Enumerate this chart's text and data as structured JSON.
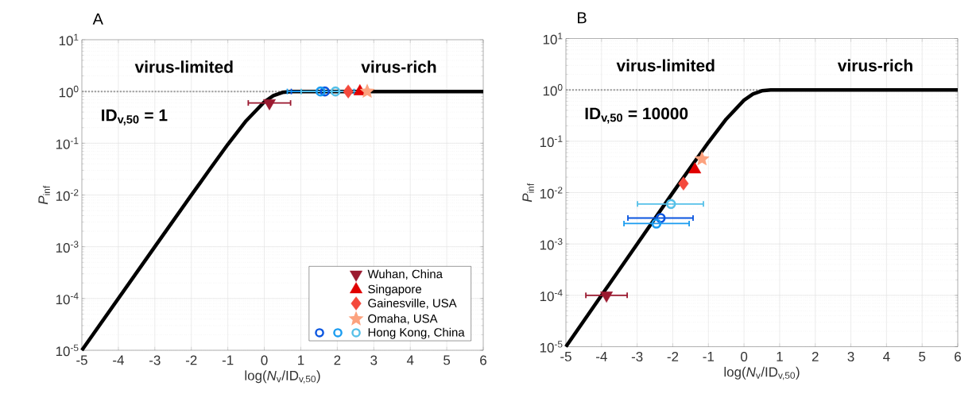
{
  "chart_data": [
    {
      "type": "scatter",
      "title": "A",
      "xlabel": "log(*N*$_{v}$/ID$_{v,50}$)",
      "ylabel": "*P*$_{inf}$",
      "annotations": [
        "virus-limited",
        "virus-rich",
        "ID$_{v,50}$ = 1"
      ],
      "xlim": [
        -5,
        6
      ],
      "ylim": [
        1e-05,
        10
      ],
      "xticks": [
        -5,
        -4,
        -3,
        -2,
        -1,
        0,
        1,
        2,
        3,
        4,
        5,
        6
      ],
      "yticks": [
        {
          "value": 1e-05,
          "label": "10$^{-5}$"
        },
        {
          "value": 0.0001,
          "label": "10$^{-4}$"
        },
        {
          "value": 0.001,
          "label": "10$^{-3}$"
        },
        {
          "value": 0.01,
          "label": "10$^{-2}$"
        },
        {
          "value": 0.1,
          "label": "10$^{-1}$"
        },
        {
          "value": 1,
          "label": "10$^{0}$"
        },
        {
          "value": 10,
          "label": "10$^{1}$"
        }
      ],
      "log": "y",
      "grid": true,
      "legend": "bottom right",
      "ref_lines": [
        {
          "axis": "y",
          "value": 1,
          "color": "#999999",
          "line_style": "dotted"
        }
      ],
      "series": [
        {
          "type": "line",
          "color": "#000000",
          "marker": "none",
          "x": [
            -5,
            -4,
            -3,
            -2,
            -1.5,
            -1,
            -0.5,
            0,
            0.25,
            0.5,
            0.75,
            1,
            1.5,
            2,
            6
          ],
          "values": [
            1e-05,
            0.0001,
            0.001,
            0.00995,
            0.031,
            0.095,
            0.27,
            0.63,
            0.83,
            0.96,
            0.996,
            1,
            1,
            1,
            1
          ]
        },
        {
          "type": "scatter",
          "name": "Wuhan, China",
          "color": "#9b1a30",
          "marker": "triangle-down",
          "x": [
            0.14
          ],
          "values": [
            0.6
          ],
          "xerrors": [
            [
              -0.44,
              0.72
            ]
          ]
        },
        {
          "type": "scatter",
          "name": "Singapore",
          "color": "#e00000",
          "marker": "triangle",
          "x": [
            2.62
          ],
          "values": [
            1
          ]
        },
        {
          "type": "scatter",
          "name": "Gainesville, USA",
          "color": "#f4493c",
          "marker": "diamond",
          "x": [
            2.3
          ],
          "values": [
            1
          ]
        },
        {
          "type": "scatter",
          "name": "Omaha, USA",
          "color": "#fca27e",
          "marker": "star",
          "x": [
            2.82
          ],
          "values": [
            1
          ]
        },
        {
          "type": "scatter",
          "color": "#0a55e0",
          "marker": "circle",
          "x": [
            1.66
          ],
          "values": [
            1
          ],
          "xerrors": [
            [
              0.74,
              2.57
            ]
          ]
        },
        {
          "type": "scatter",
          "color": "#1a9cf0",
          "marker": "circle",
          "x": [
            1.54
          ],
          "values": [
            1
          ],
          "xerrors": [
            [
              0.63,
              2.46
            ]
          ]
        },
        {
          "type": "scatter",
          "name": "Hong Kong, China",
          "color": "#55c0e8",
          "marker": "circle",
          "x": [
            1.95
          ],
          "values": [
            1
          ],
          "xerrors": [
            [
              1.01,
              2.86
            ]
          ]
        }
      ]
    },
    {
      "type": "scatter",
      "title": "B",
      "xlabel": "log(*N*$_{v}$/ID$_{v,50}$)",
      "ylabel": "*P*$_{inf}$",
      "annotations": [
        "virus-limited",
        "virus-rich",
        "ID$_{v,50}$ = 10000"
      ],
      "xlim": [
        -5,
        6
      ],
      "ylim": [
        1e-05,
        10
      ],
      "xticks": [
        -5,
        -4,
        -3,
        -2,
        -1,
        0,
        1,
        2,
        3,
        4,
        5,
        6
      ],
      "yticks": [
        {
          "value": 1e-05,
          "label": "10$^{-5}$"
        },
        {
          "value": 0.0001,
          "label": "10$^{-4}$"
        },
        {
          "value": 0.001,
          "label": "10$^{-3}$"
        },
        {
          "value": 0.01,
          "label": "10$^{-2}$"
        },
        {
          "value": 0.1,
          "label": "10$^{-1}$"
        },
        {
          "value": 1,
          "label": "10$^{0}$"
        },
        {
          "value": 10,
          "label": "10$^{1}$"
        }
      ],
      "log": "y",
      "grid": true,
      "ref_lines": [
        {
          "axis": "y",
          "value": 1,
          "color": "#999999",
          "line_style": "dotted"
        }
      ],
      "series": [
        {
          "type": "line",
          "color": "#000000",
          "marker": "none",
          "x": [
            -5,
            -4,
            -3,
            -2,
            -1.5,
            -1,
            -0.5,
            0,
            0.25,
            0.5,
            0.75,
            1,
            1.5,
            2,
            6
          ],
          "values": [
            1e-05,
            0.0001,
            0.001,
            0.00995,
            0.031,
            0.095,
            0.27,
            0.63,
            0.83,
            0.96,
            0.996,
            1,
            1,
            1,
            1
          ]
        },
        {
          "type": "scatter",
          "color": "#9b1a30",
          "marker": "triangle-down",
          "x": [
            -3.86
          ],
          "values": [
            0.0001
          ],
          "xerrors": [
            [
              -4.44,
              -3.28
            ]
          ]
        },
        {
          "type": "scatter",
          "color": "#e00000",
          "marker": "triangle",
          "x": [
            -1.38
          ],
          "values": [
            0.028
          ]
        },
        {
          "type": "scatter",
          "color": "#f4493c",
          "marker": "diamond",
          "x": [
            -1.7
          ],
          "values": [
            0.015
          ]
        },
        {
          "type": "scatter",
          "color": "#fca27e",
          "marker": "star",
          "x": [
            -1.18
          ],
          "values": [
            0.045
          ]
        },
        {
          "type": "scatter",
          "color": "#0a55e0",
          "marker": "circle",
          "x": [
            -2.34
          ],
          "values": [
            0.0032
          ],
          "xerrors": [
            [
              -3.26,
              -1.43
            ]
          ]
        },
        {
          "type": "scatter",
          "color": "#1a9cf0",
          "marker": "circle",
          "x": [
            -2.46
          ],
          "values": [
            0.0025
          ],
          "xerrors": [
            [
              -3.37,
              -1.54
            ]
          ]
        },
        {
          "type": "scatter",
          "color": "#55c0e8",
          "marker": "circle",
          "x": [
            -2.05
          ],
          "values": [
            0.006
          ],
          "xerrors": [
            [
              -2.99,
              -1.14
            ]
          ]
        }
      ]
    }
  ]
}
